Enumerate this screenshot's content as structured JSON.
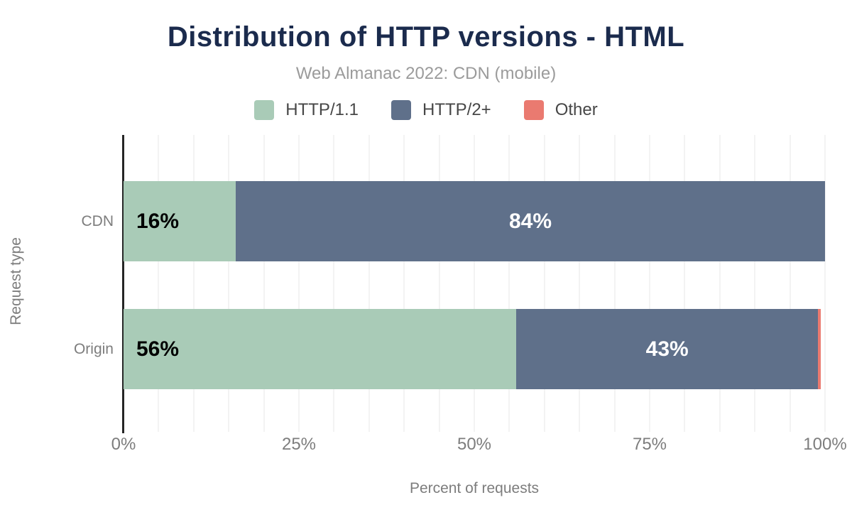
{
  "header": {
    "title": "Distribution of HTTP versions - HTML",
    "subtitle": "Web Almanac 2022: CDN (mobile)"
  },
  "colors": {
    "title": "#1b2b4d",
    "subtitle": "#9b9b9b",
    "axis_text": "#7d7d7d",
    "gridline": "#f3f3f3",
    "axis_line": "#262626"
  },
  "chart_data": {
    "type": "bar",
    "orientation": "horizontal",
    "stacked": true,
    "title": "Distribution of HTTP versions - HTML",
    "subtitle": "Web Almanac 2022: CDN (mobile)",
    "xlabel": "Percent of requests",
    "ylabel": "Request type",
    "categories": [
      "CDN",
      "Origin"
    ],
    "series": [
      {
        "name": "HTTP/1.1",
        "color": "#a9cbb7",
        "text_color": "#000000",
        "values": [
          16,
          56
        ],
        "labels": [
          "16%",
          "56%"
        ]
      },
      {
        "name": "HTTP/2+",
        "color": "#5f708a",
        "text_color": "#ffffff",
        "values": [
          84,
          43
        ],
        "labels": [
          "84%",
          "43%"
        ]
      },
      {
        "name": "Other",
        "color": "#ea7a70",
        "text_color": "#ffffff",
        "values": [
          0,
          0.4
        ],
        "labels": [
          "",
          ""
        ]
      }
    ],
    "xlim": [
      0,
      100
    ],
    "x_ticks": [
      "0%",
      "25%",
      "50%",
      "75%",
      "100%"
    ],
    "x_tick_values": [
      0,
      25,
      50,
      75,
      100
    ],
    "grid_step": 5,
    "grid_on": true,
    "legend_position": "top"
  }
}
